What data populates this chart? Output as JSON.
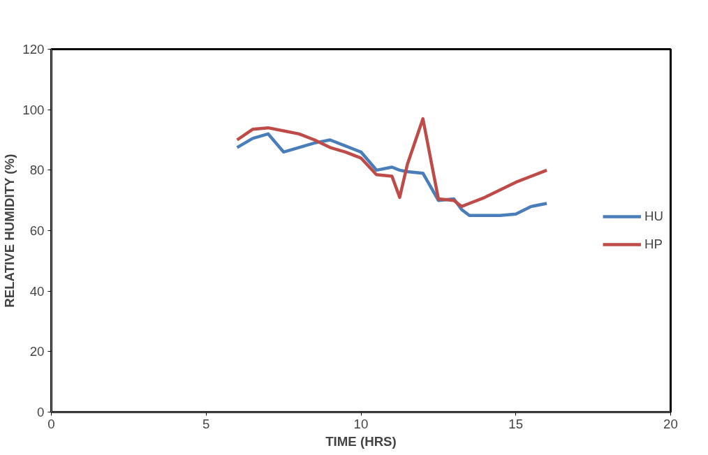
{
  "chart_data": {
    "type": "line",
    "xlabel": "TIME (HRS)",
    "ylabel": "RELATIVE HUMIDITY (%)",
    "x": [
      6,
      6.5,
      7,
      7.5,
      8,
      8.5,
      9,
      9.5,
      10,
      10.5,
      11,
      11.25,
      11.5,
      12,
      12.5,
      13,
      13.25,
      13.5,
      14,
      14.5,
      15,
      15.5,
      16
    ],
    "series": [
      {
        "name": "HU",
        "color": "#4a7ebb",
        "values": [
          87.5,
          90.5,
          92,
          86,
          87.5,
          89,
          90,
          88,
          86,
          80,
          81,
          80,
          79.5,
          79,
          70,
          70.5,
          67,
          65,
          65,
          65,
          65.5,
          68,
          69
        ]
      },
      {
        "name": "HP",
        "color": "#be4b48",
        "values": [
          90,
          93.5,
          94,
          93,
          92,
          90,
          87.5,
          86,
          84,
          78.5,
          78,
          71,
          82,
          97,
          70.5,
          70,
          68,
          69,
          71,
          73.5,
          76,
          78,
          80
        ]
      }
    ],
    "xlim": [
      0,
      20
    ],
    "xticks": [
      0,
      5,
      10,
      15,
      20
    ],
    "ylim": [
      0,
      120
    ],
    "yticks": [
      0,
      20,
      40,
      60,
      80,
      100,
      120
    ],
    "grid": false,
    "legend": "right",
    "marker": "none",
    "line_style": "solid"
  }
}
